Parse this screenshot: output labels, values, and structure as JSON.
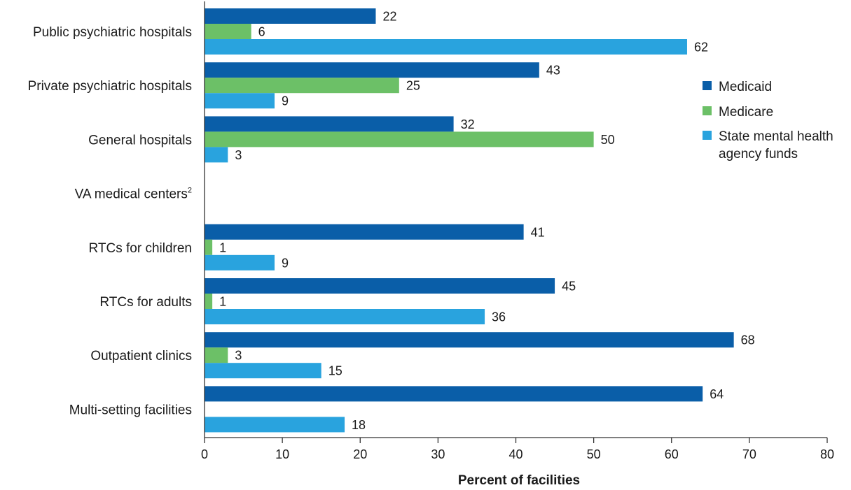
{
  "chart_data": {
    "type": "bar",
    "orientation": "horizontal",
    "categories": [
      "Public psychiatric hospitals",
      "Private psychiatric hospitals",
      "General hospitals",
      "VA medical centers",
      "RTCs for children",
      "RTCs for adults",
      "Outpatient clinics",
      "Multi-setting facilities"
    ],
    "category_superscripts": [
      "",
      "",
      "",
      "2",
      "",
      "",
      "",
      ""
    ],
    "series": [
      {
        "name": "Medicaid",
        "color": "#0a5ea8",
        "values": [
          22,
          43,
          32,
          null,
          41,
          45,
          68,
          64
        ],
        "labels": [
          "22",
          "43",
          "32",
          "",
          "41",
          "45",
          "68",
          "64"
        ]
      },
      {
        "name": "Medicare",
        "color": "#6cc067",
        "values": [
          6,
          25,
          50,
          null,
          1,
          1,
          3,
          null
        ],
        "labels": [
          "6",
          "25",
          "50",
          "",
          "1",
          "1",
          "3",
          ""
        ]
      },
      {
        "name": "State mental health agency funds",
        "color": "#29a3de",
        "values": [
          62,
          9,
          3,
          null,
          9,
          36,
          15,
          18
        ],
        "labels": [
          "62",
          "9",
          "3",
          "",
          "9",
          "36",
          "15",
          "18"
        ]
      }
    ],
    "legend": {
      "position": "right",
      "items": [
        {
          "lines": [
            "Medicaid"
          ]
        },
        {
          "lines": [
            "Medicare"
          ]
        },
        {
          "lines": [
            "State mental health",
            "agency funds"
          ]
        }
      ]
    },
    "xlabel": "Percent of facilities",
    "xlim": [
      0,
      80
    ],
    "xticks": [
      "0",
      "10",
      "20",
      "30",
      "40",
      "50",
      "60",
      "70",
      "80"
    ],
    "grid": false
  }
}
